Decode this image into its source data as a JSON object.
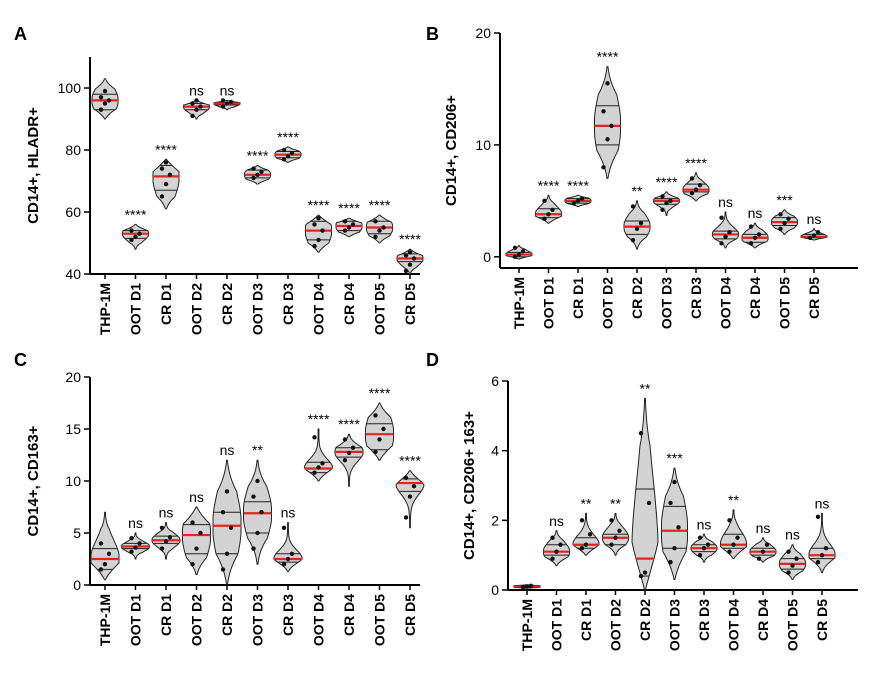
{
  "categories": [
    "THP-1M",
    "OOT D1",
    "CR D1",
    "OOT D2",
    "CR D2",
    "OOT D3",
    "CR D3",
    "OOT D4",
    "CR D4",
    "OOT D5",
    "CR D5"
  ],
  "colors": {
    "violin_fill": "#d3d3d3",
    "violin_stroke": "#222222",
    "median": "#e8231f",
    "quartile": "#222222",
    "point": "#111111"
  },
  "chart_data": [
    {
      "panel": "A",
      "type": "violin",
      "ylabel": "CD14+, HLADR+",
      "ylim": [
        40,
        110
      ],
      "yticks": [
        40,
        60,
        80,
        100
      ],
      "series": [
        {
          "category": "THP-1M",
          "median": 96,
          "q1": 93,
          "q3": 98,
          "min": 90,
          "max": 103,
          "points": [
            93,
            95,
            96,
            97,
            99
          ],
          "significance": ""
        },
        {
          "category": "OOT D1",
          "median": 53,
          "q1": 51.5,
          "q3": 54,
          "min": 48,
          "max": 56,
          "points": [
            51,
            52,
            53,
            54
          ],
          "significance": "****"
        },
        {
          "category": "CR D1",
          "median": 71.5,
          "q1": 67,
          "q3": 75,
          "min": 61,
          "max": 77,
          "points": [
            65,
            69,
            72,
            74,
            76
          ],
          "significance": "****"
        },
        {
          "category": "OOT D2",
          "median": 94,
          "q1": 93,
          "q3": 95,
          "min": 90,
          "max": 96,
          "points": [
            91,
            93,
            94,
            95,
            96
          ],
          "significance": "ns"
        },
        {
          "category": "CR D2",
          "median": 95,
          "q1": 94.5,
          "q3": 95.3,
          "min": 93,
          "max": 96,
          "points": [
            94,
            95,
            95.5,
            96
          ],
          "significance": "ns"
        },
        {
          "category": "OOT D3",
          "median": 72,
          "q1": 71,
          "q3": 73.5,
          "min": 69,
          "max": 75,
          "points": [
            71,
            72,
            73,
            74
          ],
          "significance": "****"
        },
        {
          "category": "CR D3",
          "median": 78.5,
          "q1": 77.5,
          "q3": 79.5,
          "min": 76,
          "max": 81,
          "points": [
            77,
            78,
            79,
            80
          ],
          "significance": "****"
        },
        {
          "category": "OOT D4",
          "median": 54,
          "q1": 51,
          "q3": 57,
          "min": 47,
          "max": 59,
          "points": [
            49,
            51,
            54,
            56,
            58
          ],
          "significance": "****"
        },
        {
          "category": "CR D4",
          "median": 55.5,
          "q1": 54,
          "q3": 57,
          "min": 52,
          "max": 58,
          "points": [
            54,
            55,
            56,
            57
          ],
          "significance": "****"
        },
        {
          "category": "OOT D5",
          "median": 55,
          "q1": 53,
          "q3": 57,
          "min": 50,
          "max": 59,
          "points": [
            52,
            54,
            55,
            57
          ],
          "significance": "****"
        },
        {
          "category": "CR D5",
          "median": 45,
          "q1": 44,
          "q3": 46.5,
          "min": 40,
          "max": 48,
          "points": [
            41,
            43,
            45,
            46,
            47
          ],
          "significance": "****"
        }
      ]
    },
    {
      "panel": "B",
      "type": "violin",
      "ylabel": "CD14+, CD206+",
      "ylim": [
        -1,
        20
      ],
      "yticks": [
        0,
        10,
        20
      ],
      "series": [
        {
          "category": "THP-1M",
          "median": 0.2,
          "q1": 0,
          "q3": 0.4,
          "min": -0.2,
          "max": 1,
          "points": [
            0,
            0.2,
            0.5,
            0.8
          ],
          "significance": ""
        },
        {
          "category": "OOT D1",
          "median": 3.8,
          "q1": 3.5,
          "q3": 4.3,
          "min": 3,
          "max": 5.5,
          "points": [
            3.4,
            3.8,
            4.2,
            5
          ],
          "significance": "****"
        },
        {
          "category": "CR D1",
          "median": 5,
          "q1": 4.8,
          "q3": 5.2,
          "min": 4.5,
          "max": 5.5,
          "points": [
            4.8,
            5,
            5.2
          ],
          "significance": "****"
        },
        {
          "category": "OOT D2",
          "median": 11.7,
          "q1": 10,
          "q3": 13.5,
          "min": 7,
          "max": 17,
          "points": [
            8,
            10.5,
            11.7,
            13,
            15.5
          ],
          "significance": "****"
        },
        {
          "category": "CR D2",
          "median": 2.7,
          "q1": 2,
          "q3": 3.2,
          "min": 0.7,
          "max": 5,
          "points": [
            1.5,
            2.5,
            3,
            4.5
          ],
          "significance": "**"
        },
        {
          "category": "OOT D3",
          "median": 5,
          "q1": 4.7,
          "q3": 5.2,
          "min": 3.7,
          "max": 5.8,
          "points": [
            4.2,
            4.8,
            5,
            5.4
          ],
          "significance": "****"
        },
        {
          "category": "CR D3",
          "median": 6,
          "q1": 5.8,
          "q3": 6.5,
          "min": 5,
          "max": 7.5,
          "points": [
            5.7,
            6,
            6.4,
            7
          ],
          "significance": "****"
        },
        {
          "category": "OOT D4",
          "median": 2,
          "q1": 1.6,
          "q3": 2.3,
          "min": 0.8,
          "max": 4,
          "points": [
            1.2,
            1.8,
            2.2,
            3.5
          ],
          "significance": "ns"
        },
        {
          "category": "CR D4",
          "median": 1.7,
          "q1": 1.3,
          "q3": 2,
          "min": 0.8,
          "max": 3,
          "points": [
            1.2,
            1.7,
            2,
            2.7
          ],
          "significance": "ns"
        },
        {
          "category": "OOT D5",
          "median": 3.1,
          "q1": 2.8,
          "q3": 3.5,
          "min": 2,
          "max": 4.2,
          "points": [
            2.5,
            3,
            3.4,
            3.8
          ],
          "significance": "***"
        },
        {
          "category": "CR D5",
          "median": 1.8,
          "q1": 1.7,
          "q3": 2,
          "min": 1.5,
          "max": 2.5,
          "points": [
            1.7,
            1.9,
            2.2
          ],
          "significance": "ns"
        }
      ]
    },
    {
      "panel": "C",
      "type": "violin",
      "ylabel": "CD14+, CD163+",
      "ylim": [
        0,
        20
      ],
      "yticks": [
        0,
        5,
        10,
        15,
        20
      ],
      "series": [
        {
          "category": "THP-1M",
          "median": 2.5,
          "q1": 1.5,
          "q3": 3.5,
          "min": 0.5,
          "max": 7,
          "points": [
            1.5,
            2,
            3,
            4
          ],
          "significance": ""
        },
        {
          "category": "OOT D1",
          "median": 3.7,
          "q1": 3.5,
          "q3": 4,
          "min": 2.5,
          "max": 5,
          "points": [
            3.2,
            3.6,
            4,
            4.5
          ],
          "significance": "ns"
        },
        {
          "category": "CR D1",
          "median": 4.3,
          "q1": 4,
          "q3": 4.7,
          "min": 2.5,
          "max": 6,
          "points": [
            3.5,
            4.2,
            4.6,
            5.5
          ],
          "significance": "ns"
        },
        {
          "category": "OOT D2",
          "median": 4.8,
          "q1": 3,
          "q3": 5.8,
          "min": 1,
          "max": 7.5,
          "points": [
            2,
            3.5,
            5,
            6
          ],
          "significance": "ns"
        },
        {
          "category": "CR D2",
          "median": 5.7,
          "q1": 3,
          "q3": 7,
          "min": 0,
          "max": 12,
          "points": [
            1.5,
            3,
            5.5,
            7,
            9
          ],
          "significance": "ns"
        },
        {
          "category": "OOT D3",
          "median": 6.9,
          "q1": 5,
          "q3": 8,
          "min": 2,
          "max": 12,
          "points": [
            3.5,
            5,
            7,
            8.5,
            10
          ],
          "significance": "**"
        },
        {
          "category": "CR D3",
          "median": 2.5,
          "q1": 2.2,
          "q3": 3,
          "min": 1.3,
          "max": 6,
          "points": [
            2,
            2.5,
            3,
            5.5
          ],
          "significance": "ns"
        },
        {
          "category": "OOT D4",
          "median": 11.2,
          "q1": 10.8,
          "q3": 11.8,
          "min": 10,
          "max": 15,
          "points": [
            10.8,
            11.3,
            11.7,
            14.2
          ],
          "significance": "****"
        },
        {
          "category": "CR D4",
          "median": 12.8,
          "q1": 12.3,
          "q3": 13.2,
          "min": 9.5,
          "max": 14.5,
          "points": [
            12,
            12.7,
            13.2,
            14
          ],
          "significance": "****"
        },
        {
          "category": "OOT D5",
          "median": 14.5,
          "q1": 13,
          "q3": 15.5,
          "min": 12,
          "max": 17.5,
          "points": [
            12.8,
            14,
            15,
            16.3
          ],
          "significance": "****"
        },
        {
          "category": "CR D5",
          "median": 9.8,
          "q1": 9,
          "q3": 10.2,
          "min": 5.5,
          "max": 11,
          "points": [
            6.5,
            8.5,
            9.5,
            10.3
          ],
          "significance": "****"
        }
      ]
    },
    {
      "panel": "D",
      "type": "violin",
      "ylabel": "CD14+, CD206+ 163+",
      "ylim": [
        0,
        6
      ],
      "yticks": [
        0,
        2,
        4,
        6
      ],
      "series": [
        {
          "category": "THP-1M",
          "median": 0.1,
          "q1": 0.08,
          "q3": 0.12,
          "min": 0.05,
          "max": 0.15,
          "points": [
            0.08,
            0.1,
            0.12
          ],
          "significance": ""
        },
        {
          "category": "OOT D1",
          "median": 1.1,
          "q1": 1,
          "q3": 1.3,
          "min": 0.7,
          "max": 1.7,
          "points": [
            0.9,
            1.1,
            1.3,
            1.5
          ],
          "significance": "ns"
        },
        {
          "category": "CR D1",
          "median": 1.3,
          "q1": 1.2,
          "q3": 1.5,
          "min": 1,
          "max": 2.2,
          "points": [
            1.2,
            1.3,
            1.6,
            2
          ],
          "significance": "**"
        },
        {
          "category": "OOT D2",
          "median": 1.5,
          "q1": 1.3,
          "q3": 1.6,
          "min": 1,
          "max": 2.2,
          "points": [
            1.3,
            1.5,
            1.7,
            2
          ],
          "significance": "**"
        },
        {
          "category": "CR D2",
          "median": 0.9,
          "q1": 0.4,
          "q3": 2.9,
          "min": 0,
          "max": 5.5,
          "points": [
            0.4,
            0.5,
            2.5,
            4.5
          ],
          "significance": "**"
        },
        {
          "category": "OOT D3",
          "median": 1.7,
          "q1": 1.2,
          "q3": 2.4,
          "min": 0.3,
          "max": 3.5,
          "points": [
            0.8,
            1.2,
            1.8,
            2.5,
            3.1
          ],
          "significance": "***"
        },
        {
          "category": "CR D3",
          "median": 1.2,
          "q1": 1.1,
          "q3": 1.3,
          "min": 0.8,
          "max": 1.6,
          "points": [
            1,
            1.2,
            1.3,
            1.5
          ],
          "significance": "ns"
        },
        {
          "category": "OOT D4",
          "median": 1.3,
          "q1": 1.2,
          "q3": 1.6,
          "min": 0.9,
          "max": 2.3,
          "points": [
            1.1,
            1.3,
            1.5,
            2
          ],
          "significance": "**"
        },
        {
          "category": "CR D4",
          "median": 1.1,
          "q1": 1,
          "q3": 1.2,
          "min": 0.8,
          "max": 1.5,
          "points": [
            0.9,
            1.1,
            1.3
          ],
          "significance": "ns"
        },
        {
          "category": "OOT D5",
          "median": 0.75,
          "q1": 0.6,
          "q3": 0.9,
          "min": 0.3,
          "max": 1.3,
          "points": [
            0.5,
            0.7,
            0.9,
            1.1
          ],
          "significance": "ns"
        },
        {
          "category": "CR D5",
          "median": 1,
          "q1": 0.9,
          "q3": 1.2,
          "min": 0.5,
          "max": 2.2,
          "points": [
            0.8,
            1,
            1.2,
            2.1
          ],
          "significance": "ns"
        }
      ]
    }
  ]
}
